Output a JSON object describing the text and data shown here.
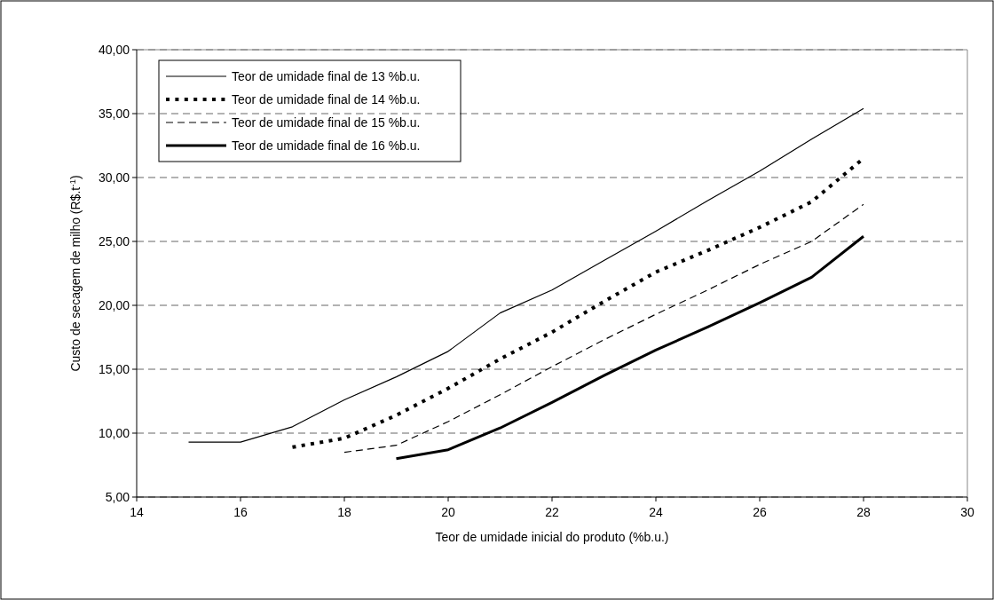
{
  "chart_data": {
    "type": "line",
    "xlabel": "Teor de umidade inicial do produto (%b.u.)",
    "ylabel": "Custo de secagem de milho (R$.t$^{-1}$)",
    "xlim": [
      14,
      30
    ],
    "xticks": [
      14,
      16,
      18,
      20,
      22,
      24,
      26,
      28,
      30
    ],
    "ylim": [
      5,
      40
    ],
    "yticks": [
      {
        "value": 5,
        "label": "5,00"
      },
      {
        "value": 10,
        "label": "10,00"
      },
      {
        "value": 15,
        "label": "15,00"
      },
      {
        "value": 20,
        "label": "20,00"
      },
      {
        "value": 25,
        "label": "25,00"
      },
      {
        "value": 30,
        "label": "30,00"
      },
      {
        "value": 35,
        "label": "35,00"
      },
      {
        "value": 40,
        "label": "40,00"
      }
    ],
    "grid": "y",
    "legend": "top left",
    "series": [
      {
        "name": "Teor de umidade final de 13 %b.u.",
        "color": "#000000",
        "line_style": "solid",
        "x": [
          15,
          16,
          17,
          18,
          19,
          20,
          21,
          22,
          23,
          24,
          25,
          26,
          27,
          28
        ],
        "values": [
          9.3,
          9.3,
          10.5,
          12.6,
          14.4,
          16.4,
          19.4,
          21.2,
          23.5,
          25.8,
          28.2,
          30.5,
          33.0,
          35.4
        ]
      },
      {
        "name": "Teor de umidade final de 14 %b.u.",
        "color": "#000000",
        "line_style": "dotted",
        "x": [
          17,
          18,
          19,
          20,
          21,
          22,
          23,
          24,
          25,
          26,
          27,
          28
        ],
        "values": [
          8.9,
          9.6,
          11.4,
          13.5,
          15.8,
          17.9,
          20.3,
          22.6,
          24.3,
          26.1,
          28.1,
          31.5
        ]
      },
      {
        "name": "Teor de umidade final de 15 %b.u.",
        "color": "#000000",
        "line_style": "dashed",
        "x": [
          18,
          19,
          20,
          21,
          22,
          23,
          24,
          25,
          26,
          27,
          28
        ],
        "values": [
          8.5,
          9.05,
          10.9,
          13.0,
          15.2,
          17.3,
          19.3,
          21.2,
          23.2,
          25.0,
          27.9
        ]
      },
      {
        "name": "Teor de umidade final de 16 %b.u.",
        "color": "#000000",
        "line_style": "solid",
        "x": [
          19,
          20,
          21,
          22,
          23,
          24,
          25,
          26,
          27,
          28
        ],
        "values": [
          8.0,
          8.7,
          10.4,
          12.4,
          14.5,
          16.5,
          18.3,
          20.2,
          22.2,
          25.4
        ]
      }
    ]
  }
}
